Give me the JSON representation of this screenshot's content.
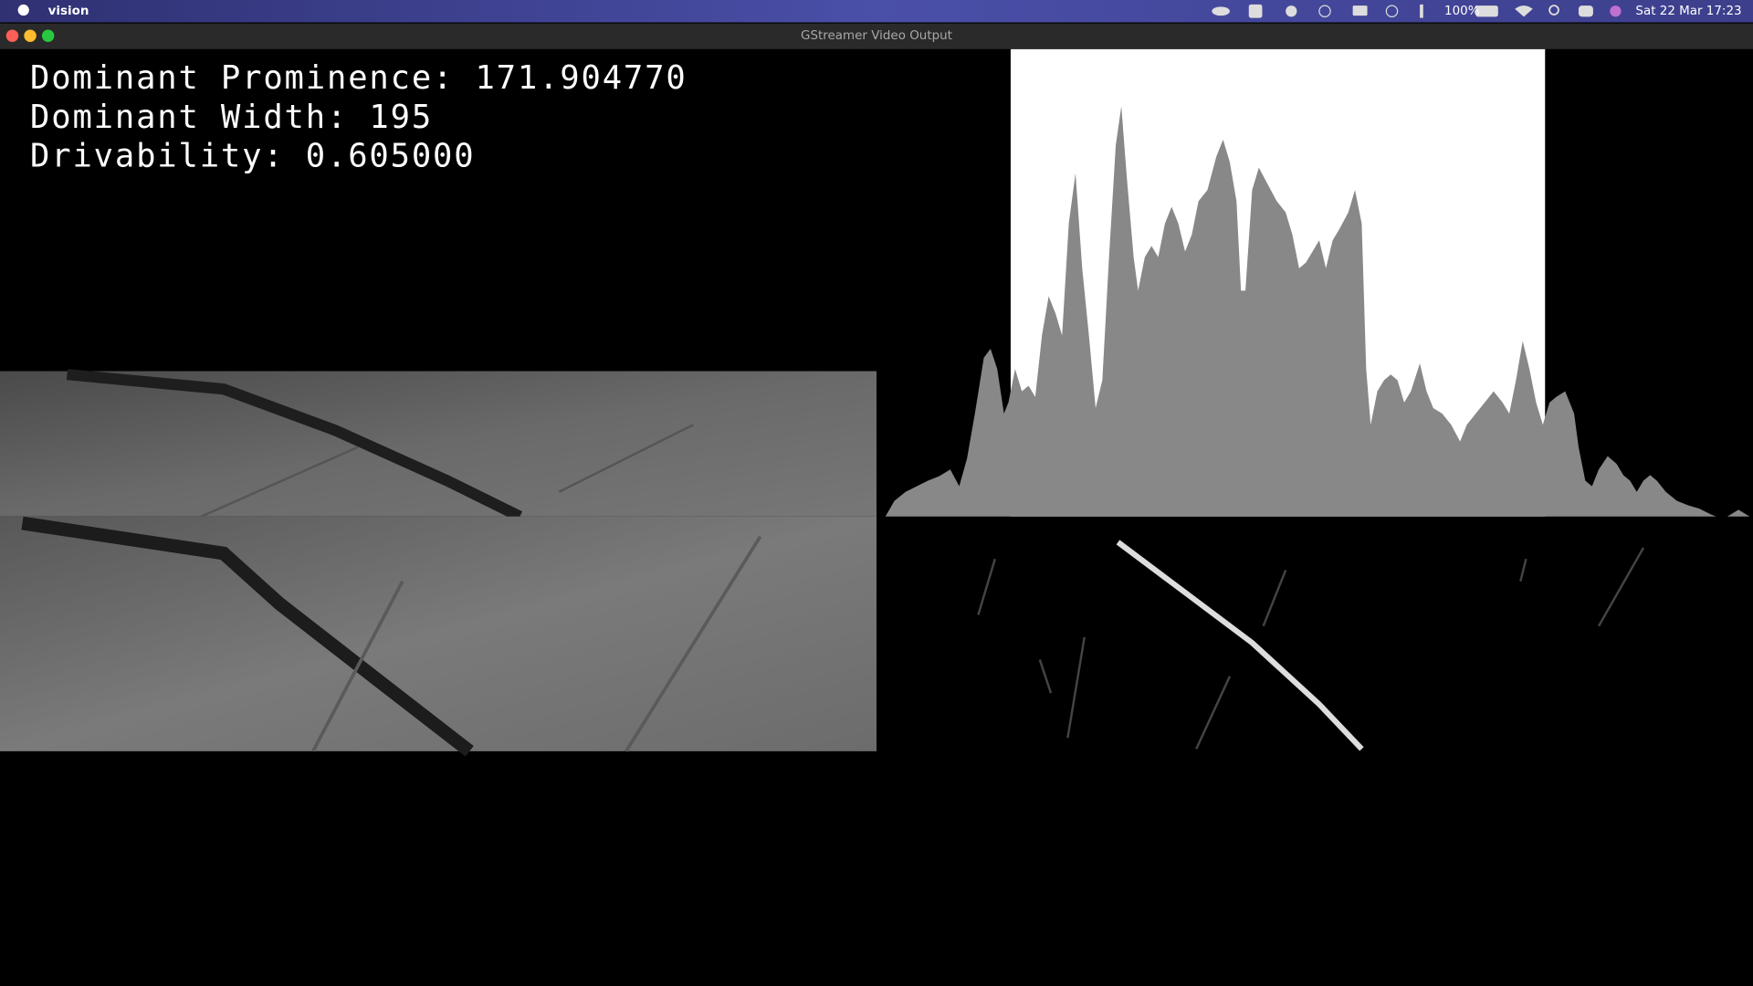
{
  "menu_bar": {
    "app": "vision",
    "battery": "100%",
    "clock": "Sat 22 Mar 17:23"
  },
  "window": {
    "title": "GStreamer Video Output",
    "overlay": [
      "Dominant Prominence: 171.904770",
      "Dominant Width: 195",
      "Drivability: 0.605000"
    ]
  }
}
